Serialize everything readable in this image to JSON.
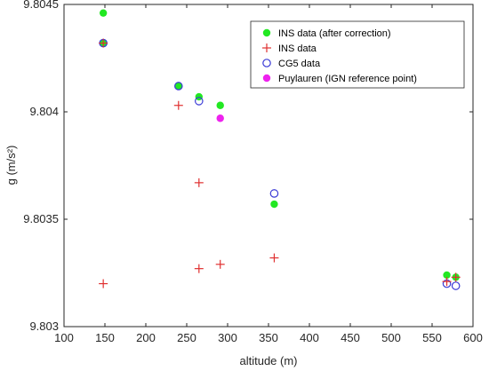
{
  "chart_data": {
    "type": "scatter",
    "xlabel": "altitude (m)",
    "ylabel": "g (m/s²)",
    "xlim": [
      100,
      600
    ],
    "ylim": [
      9.803,
      9.8045
    ],
    "x_ticks": [
      "100",
      "150",
      "200",
      "250",
      "300",
      "350",
      "400",
      "450",
      "500",
      "550",
      "600"
    ],
    "y_ticks": [
      "9.803",
      "9.8035",
      "9.804",
      "9.8045"
    ],
    "legend_position": "top-right",
    "grid": false,
    "series": [
      {
        "name": "INS data (after correction)",
        "marker": "filled-circle",
        "color": "#22e822",
        "points": [
          {
            "x": 148,
            "y": 9.80446
          },
          {
            "x": 148,
            "y": 9.80432
          },
          {
            "x": 240,
            "y": 9.80412
          },
          {
            "x": 265,
            "y": 9.80407
          },
          {
            "x": 291,
            "y": 9.80403
          },
          {
            "x": 357,
            "y": 9.80357
          },
          {
            "x": 568,
            "y": 9.80324
          },
          {
            "x": 579,
            "y": 9.80323
          }
        ]
      },
      {
        "name": "INS data",
        "marker": "plus",
        "color": "#e03030",
        "points": [
          {
            "x": 148,
            "y": 9.80432
          },
          {
            "x": 148,
            "y": 9.8032
          },
          {
            "x": 240,
            "y": 9.80403
          },
          {
            "x": 265,
            "y": 9.80367
          },
          {
            "x": 265,
            "y": 9.80327
          },
          {
            "x": 291,
            "y": 9.80329
          },
          {
            "x": 357,
            "y": 9.80332
          },
          {
            "x": 568,
            "y": 9.80321
          },
          {
            "x": 579,
            "y": 9.80323
          }
        ]
      },
      {
        "name": "CG5 data",
        "marker": "open-circle",
        "color": "#3a3ad6",
        "points": [
          {
            "x": 148,
            "y": 9.80432
          },
          {
            "x": 240,
            "y": 9.80412
          },
          {
            "x": 265,
            "y": 9.80405
          },
          {
            "x": 357,
            "y": 9.80362
          },
          {
            "x": 568,
            "y": 9.8032
          },
          {
            "x": 579,
            "y": 9.80319
          }
        ]
      },
      {
        "name": "Puylauren (IGN reference point)",
        "marker": "filled-circle",
        "color": "#ee22ee",
        "points": [
          {
            "x": 291,
            "y": 9.80397
          }
        ]
      }
    ]
  }
}
